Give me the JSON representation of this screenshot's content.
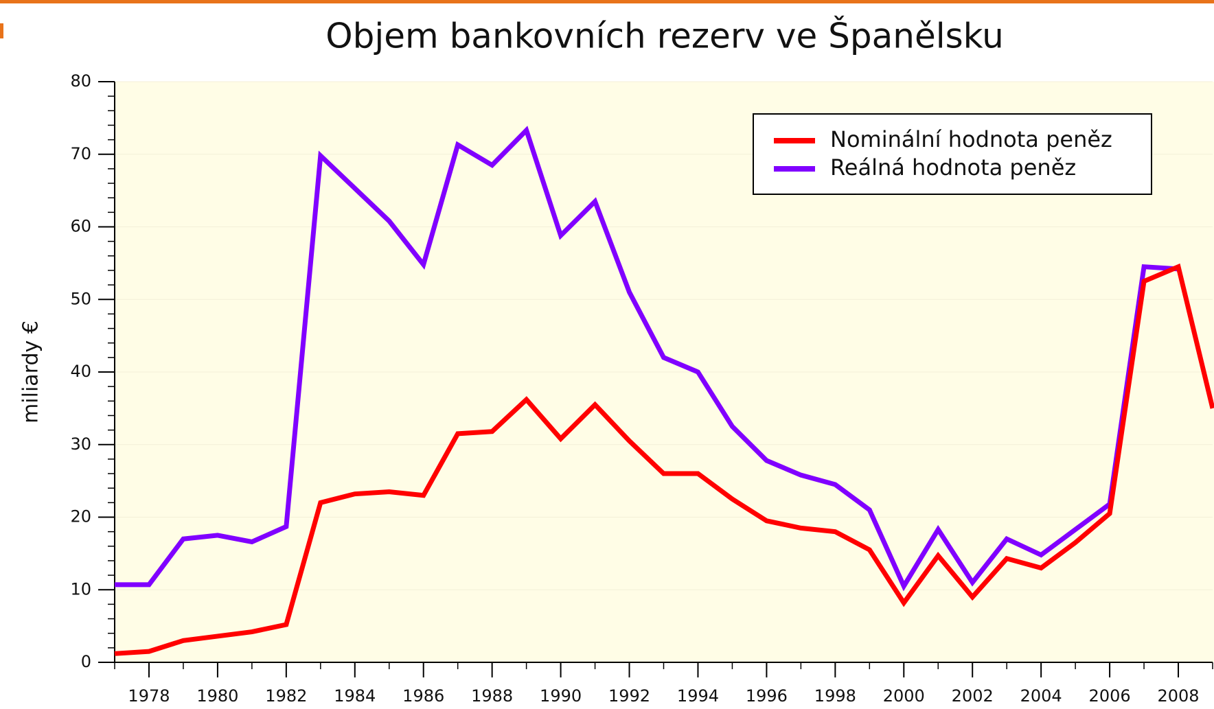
{
  "chart_data": {
    "type": "line",
    "title": "Objem bankovních rezerv ve Španělsku",
    "y_label": "miliardy €",
    "x": [
      1977,
      1978,
      1979,
      1980,
      1981,
      1982,
      1983,
      1984,
      1985,
      1986,
      1987,
      1988,
      1989,
      1990,
      1991,
      1992,
      1993,
      1994,
      1995,
      1996,
      1997,
      1998,
      1999,
      2000,
      2001,
      2002,
      2003,
      2004,
      2005,
      2006,
      2007,
      2008,
      2009
    ],
    "series": [
      {
        "name": "Nominální hodnota peněz",
        "color": "#ff0000",
        "values": [
          1.2,
          1.5,
          3,
          3.6,
          4.2,
          5.2,
          22,
          23.2,
          23.5,
          23,
          31.5,
          31.8,
          36.2,
          30.8,
          35.5,
          30.5,
          26,
          26,
          22.5,
          19.5,
          18.5,
          18,
          15.5,
          8.2,
          14.7,
          9,
          14.3,
          13,
          16.5,
          20.5,
          52.5,
          54.5,
          35
        ]
      },
      {
        "name": "Reálná hodnota peněz",
        "color": "#8000ff",
        "values": [
          10.7,
          10.7,
          17,
          17.5,
          16.6,
          18.7,
          69.8,
          65.3,
          60.8,
          54.8,
          71.3,
          68.5,
          73.3,
          58.8,
          63.5,
          51,
          42,
          40,
          32.5,
          27.8,
          25.8,
          24.5,
          21,
          10.5,
          18.3,
          11,
          17,
          14.8,
          18.3,
          21.8,
          54.5,
          54.2,
          null
        ]
      }
    ],
    "xlim": [
      1977,
      2009
    ],
    "xticks": [
      1978,
      1980,
      1982,
      1984,
      1986,
      1988,
      1990,
      1992,
      1994,
      1996,
      1998,
      2000,
      2002,
      2004,
      2006,
      2008
    ],
    "ylim": [
      0,
      80
    ],
    "yticks": [
      0,
      10,
      20,
      30,
      40,
      50,
      60,
      70,
      80
    ],
    "grid": true,
    "legend": "upper right"
  }
}
